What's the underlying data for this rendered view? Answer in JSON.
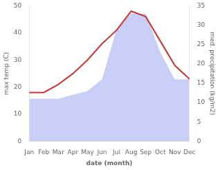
{
  "chart_data": {
    "type": "line",
    "categories": [
      "Jan",
      "Feb",
      "Mar",
      "Apr",
      "May",
      "Jun",
      "Jul",
      "Aug",
      "Sep",
      "Oct",
      "Nov",
      "Dec"
    ],
    "series": [
      {
        "type": "line",
        "color": "#c93434",
        "values": [
          18,
          18,
          21,
          25,
          30,
          36,
          41,
          48,
          46,
          37,
          28,
          23
        ]
      },
      {
        "type": "area",
        "color": "#c8cef5",
        "axis": "y2",
        "values": [
          11,
          11,
          11,
          12,
          13,
          16,
          29,
          33,
          33,
          23,
          16,
          16
        ]
      }
    ],
    "xlabel": "date (month)",
    "ylabel": "max temp (C)",
    "y2label": "med. precipitation (kg/m2)",
    "ylim": [
      0,
      50
    ],
    "yticks": [
      0,
      10,
      20,
      30,
      40,
      50
    ],
    "y2lim": [
      0,
      35
    ],
    "y2ticks": [
      0,
      5,
      10,
      15,
      20,
      25,
      30,
      35
    ],
    "grid": false
  }
}
